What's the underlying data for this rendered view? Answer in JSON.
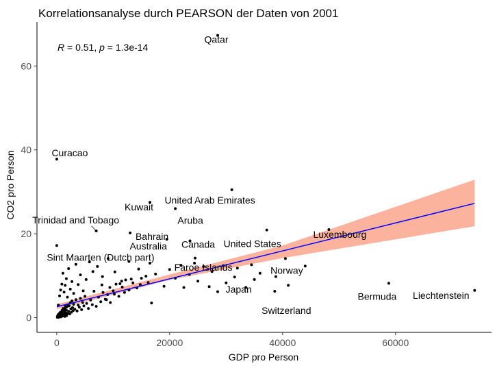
{
  "chart_data": {
    "type": "scatter",
    "title": "Korrelationsanalyse durch PEARSON der Daten von 2001",
    "xlabel": "GDP pro Person",
    "ylabel": "CO2 pro Person",
    "xlim": [
      -3500,
      77000
    ],
    "ylim": [
      -3.5,
      70.5
    ],
    "x_ticks": [
      0,
      20000,
      40000,
      60000
    ],
    "x_tick_labels": [
      "0",
      "20000",
      "40000",
      "60000"
    ],
    "y_ticks": [
      0,
      20,
      40,
      60
    ],
    "y_tick_labels": [
      "0",
      "20",
      "40",
      "60"
    ],
    "grid": false,
    "annotation": {
      "r_label": "R",
      "r_value": " = 0.51, ",
      "p_label": "p",
      "p_value": " = 1.3e-14"
    },
    "regression": {
      "x_range": [
        0,
        74000
      ],
      "intercept": 2.6,
      "slope": 0.000333,
      "ci": [
        {
          "x": 0,
          "lo": 2.0,
          "hi": 3.2
        },
        {
          "x": 20000,
          "lo": 9.0,
          "hi": 10.3
        },
        {
          "x": 40000,
          "lo": 14.2,
          "hi": 17.2
        },
        {
          "x": 74000,
          "lo": 21.8,
          "hi": 32.9
        }
      ],
      "line_color": "#0000ff",
      "band_color": "#fbb39e"
    },
    "labeled_points": [
      {
        "name": "Qatar",
        "x": 28500,
        "y": 67.3
      },
      {
        "name": "Curacao",
        "x": 0,
        "y": 37.8
      },
      {
        "name": "United Arab Emirates",
        "x": 31000,
        "y": 30.5
      },
      {
        "name": "Kuwait",
        "x": 16500,
        "y": 27.5
      },
      {
        "name": "Aruba",
        "x": 21000,
        "y": 26.0
      },
      {
        "name": "Trinidad and Tobago",
        "x": 7000,
        "y": 20.7
      },
      {
        "name": "Bahrain",
        "x": 13000,
        "y": 20.2
      },
      {
        "name": "Canada",
        "x": 23600,
        "y": 18.3
      },
      {
        "name": "United States",
        "x": 37200,
        "y": 20.9
      },
      {
        "name": "Luxembourg",
        "x": 48200,
        "y": 21.0
      },
      {
        "name": "Sint Maarten (Dutch part)",
        "x": 0,
        "y": 17.2
      },
      {
        "name": "Australia",
        "x": 19500,
        "y": 18.7
      },
      {
        "name": "Faroe Islands",
        "x": 24400,
        "y": 13.0
      },
      {
        "name": "Norway",
        "x": 38800,
        "y": 9.8
      },
      {
        "name": "Japan",
        "x": 31500,
        "y": 9.7
      },
      {
        "name": "Switzerland",
        "x": 38600,
        "y": 6.3
      },
      {
        "name": "Bermuda",
        "x": 58800,
        "y": 8.2
      },
      {
        "name": "Liechtenstein",
        "x": 74000,
        "y": 6.5
      }
    ],
    "other_points": [
      [
        200,
        0.3
      ],
      [
        300,
        0.5
      ],
      [
        400,
        0.2
      ],
      [
        500,
        0.8
      ],
      [
        600,
        0.4
      ],
      [
        700,
        1.1
      ],
      [
        800,
        0.6
      ],
      [
        900,
        1.4
      ],
      [
        1000,
        0.9
      ],
      [
        1100,
        1.6
      ],
      [
        1200,
        0.5
      ],
      [
        1300,
        2.0
      ],
      [
        1400,
        1.2
      ],
      [
        1500,
        2.3
      ],
      [
        1600,
        0.7
      ],
      [
        1700,
        1.8
      ],
      [
        1800,
        2.6
      ],
      [
        1900,
        1.0
      ],
      [
        2000,
        3.1
      ],
      [
        2100,
        1.5
      ],
      [
        2200,
        2.8
      ],
      [
        2300,
        0.9
      ],
      [
        2400,
        3.5
      ],
      [
        2500,
        2.1
      ],
      [
        2600,
        1.3
      ],
      [
        2700,
        4.0
      ],
      [
        2800,
        2.4
      ],
      [
        2900,
        1.7
      ],
      [
        3000,
        3.2
      ],
      [
        3200,
        2.0
      ],
      [
        3400,
        4.3
      ],
      [
        3600,
        1.6
      ],
      [
        3800,
        3.0
      ],
      [
        4000,
        2.5
      ],
      [
        4200,
        4.6
      ],
      [
        4400,
        1.9
      ],
      [
        4600,
        3.6
      ],
      [
        4800,
        2.8
      ],
      [
        5000,
        5.1
      ],
      [
        5300,
        3.4
      ],
      [
        5600,
        2.2
      ],
      [
        6000,
        4.2
      ],
      [
        6300,
        3.1
      ],
      [
        6600,
        6.3
      ],
      [
        7000,
        2.7
      ],
      [
        7400,
        4.9
      ],
      [
        7800,
        3.8
      ],
      [
        8200,
        6.0
      ],
      [
        8600,
        4.4
      ],
      [
        9000,
        5.5
      ],
      [
        9500,
        3.6
      ],
      [
        10000,
        6.4
      ],
      [
        10500,
        8.0
      ],
      [
        11000,
        5.1
      ],
      [
        11600,
        7.3
      ],
      [
        12200,
        9.0
      ],
      [
        12800,
        6.6
      ],
      [
        13500,
        8.3
      ],
      [
        14200,
        7.1
      ],
      [
        15000,
        9.4
      ],
      [
        300,
        3.0
      ],
      [
        500,
        5.2
      ],
      [
        700,
        6.6
      ],
      [
        900,
        8.0
      ],
      [
        1100,
        10.6
      ],
      [
        1300,
        6.1
      ],
      [
        1500,
        7.7
      ],
      [
        1700,
        9.3
      ],
      [
        1900,
        4.9
      ],
      [
        2100,
        11.7
      ],
      [
        2400,
        6.8
      ],
      [
        2700,
        8.6
      ],
      [
        3000,
        5.8
      ],
      [
        3400,
        12.7
      ],
      [
        3800,
        7.9
      ],
      [
        4200,
        10.2
      ],
      [
        4700,
        6.4
      ],
      [
        5200,
        9.1
      ],
      [
        5800,
        13.3
      ],
      [
        6400,
        11.0
      ],
      [
        7200,
        12.2
      ],
      [
        8100,
        9.8
      ],
      [
        9100,
        14.1
      ],
      [
        10300,
        10.9
      ],
      [
        11500,
        8.7
      ],
      [
        12800,
        13.4
      ],
      [
        14500,
        11.6
      ],
      [
        16200,
        8.4
      ],
      [
        16800,
        3.5
      ],
      [
        17500,
        10.4
      ],
      [
        19000,
        7.5
      ],
      [
        20000,
        11.5
      ],
      [
        21000,
        9.4
      ],
      [
        22000,
        12.5
      ],
      [
        22500,
        7.2
      ],
      [
        23500,
        10.3
      ],
      [
        24500,
        14.2
      ],
      [
        25000,
        8.7
      ],
      [
        26000,
        12.2
      ],
      [
        27000,
        7.4
      ],
      [
        27500,
        11.0
      ],
      [
        28500,
        6.2
      ],
      [
        29500,
        12.4
      ],
      [
        30000,
        8.3
      ],
      [
        32000,
        11.8
      ],
      [
        33500,
        7.2
      ],
      [
        34500,
        12.6
      ],
      [
        35000,
        9.1
      ],
      [
        36000,
        10.6
      ],
      [
        40500,
        14.1
      ],
      [
        41000,
        7.7
      ],
      [
        44000,
        12.3
      ],
      [
        100,
        0.1
      ],
      [
        150,
        0.4
      ],
      [
        250,
        0.7
      ],
      [
        350,
        0.1
      ],
      [
        450,
        1.0
      ],
      [
        550,
        0.3
      ],
      [
        650,
        1.3
      ],
      [
        750,
        0.2
      ],
      [
        850,
        0.6
      ],
      [
        950,
        1.8
      ],
      [
        1050,
        0.4
      ],
      [
        1150,
        2.2
      ],
      [
        1250,
        0.8
      ],
      [
        1350,
        1.5
      ],
      [
        1450,
        0.3
      ],
      [
        1550,
        2.7
      ],
      [
        1650,
        1.1
      ],
      [
        1750,
        0.5
      ],
      [
        16500,
        13.0
      ],
      [
        15800,
        9.9
      ],
      [
        14800,
        7.9
      ],
      [
        13200,
        9.2
      ],
      [
        12000,
        6.0
      ],
      [
        11200,
        8.1
      ],
      [
        10200,
        5.6
      ],
      [
        9400,
        7.2
      ],
      [
        8800,
        4.3
      ],
      [
        8000,
        7.8
      ]
    ]
  }
}
